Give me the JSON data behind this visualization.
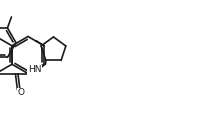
{
  "background_color": "#ffffff",
  "line_color": "#1a1a1a",
  "line_width": 1.2,
  "figsize": [
    2.08,
    1.17
  ],
  "dpi": 100,
  "xlim": [
    0,
    208
  ],
  "ylim": [
    0,
    117
  ]
}
